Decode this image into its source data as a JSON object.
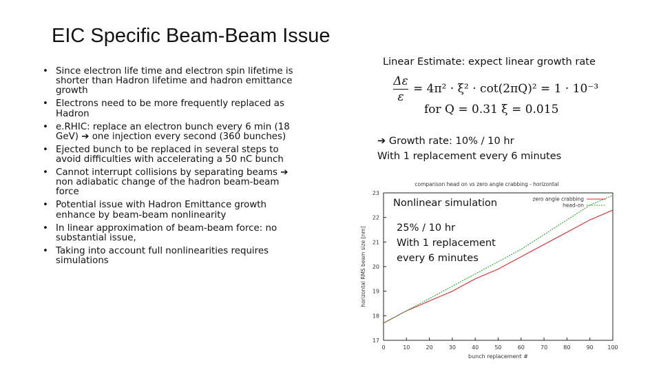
{
  "title": "EIC Specific Beam-Beam Issue",
  "bullets": [
    "Since electron life time and electron spin lifetime is shorter than Hadron lifetime and hadron emittance growth",
    "Electrons need to be more frequently replaced as Hadron",
    "e.RHIC: replace an electron bunch every 6 min (18 GeV) ➔ one injection every second (360 bunches)",
    "Ejected bunch to be replaced in several steps to avoid difficulties with accelerating a 50 nC bunch",
    "Cannot interrupt collisions by separating beams ➔ non adiabatic change of the hadron beam-beam force",
    "Potential issue with Hadron Emittance growth enhance by beam-beam nonlinearity",
    "In linear approximation of beam-beam force: no substantial issue,",
    "Taking into account full nonlinearities requires simulations"
  ],
  "bullet_char": "•",
  "linear": {
    "heading": "Linear Estimate: expect linear growth rate",
    "formula_numerator": "Δε",
    "formula_denominator": "ε",
    "formula_rhs": "= 4π² · ξ² · cot(2πQ)² = 1 · 10⁻³",
    "formula_cond": "for Q = 0.31    ξ = 0.015",
    "growth_line1": "➔ Growth rate: 10% / 10 hr",
    "growth_line2": "With 1 replacement every 6 minutes"
  },
  "nonlinear": {
    "heading": "Nonlinear simulation",
    "line1": "25% / 10 hr",
    "line2": "With 1 replacement",
    "line3": "every 6 minutes"
  },
  "chart_data": {
    "type": "line",
    "title": "comparison head on vs zero angle crabbing - horizontal",
    "xlabel": "bunch replacement #",
    "ylabel": "horizontal RMS beam size [nm]",
    "xlim": [
      0,
      100
    ],
    "ylim": [
      17,
      23
    ],
    "x_ticks": [
      "0",
      "10",
      "20",
      "30",
      "40",
      "50",
      "60",
      "70",
      "80",
      "90",
      "100"
    ],
    "y_ticks": [
      "17",
      "18",
      "19",
      "20",
      "21",
      "22",
      "23"
    ],
    "legend_position": "top-right",
    "x": [
      0,
      10,
      20,
      30,
      40,
      50,
      60,
      70,
      80,
      90,
      100
    ],
    "series": [
      {
        "name": "zero angle crabbing",
        "color": "#d62728",
        "values": [
          17.7,
          18.2,
          18.6,
          19.0,
          19.5,
          19.9,
          20.4,
          20.9,
          21.4,
          21.9,
          22.3
        ]
      },
      {
        "name": "head-on",
        "color": "#2ca02c",
        "values": [
          17.7,
          18.2,
          18.7,
          19.2,
          19.7,
          20.2,
          20.7,
          21.3,
          21.9,
          22.5,
          22.9
        ]
      }
    ]
  }
}
